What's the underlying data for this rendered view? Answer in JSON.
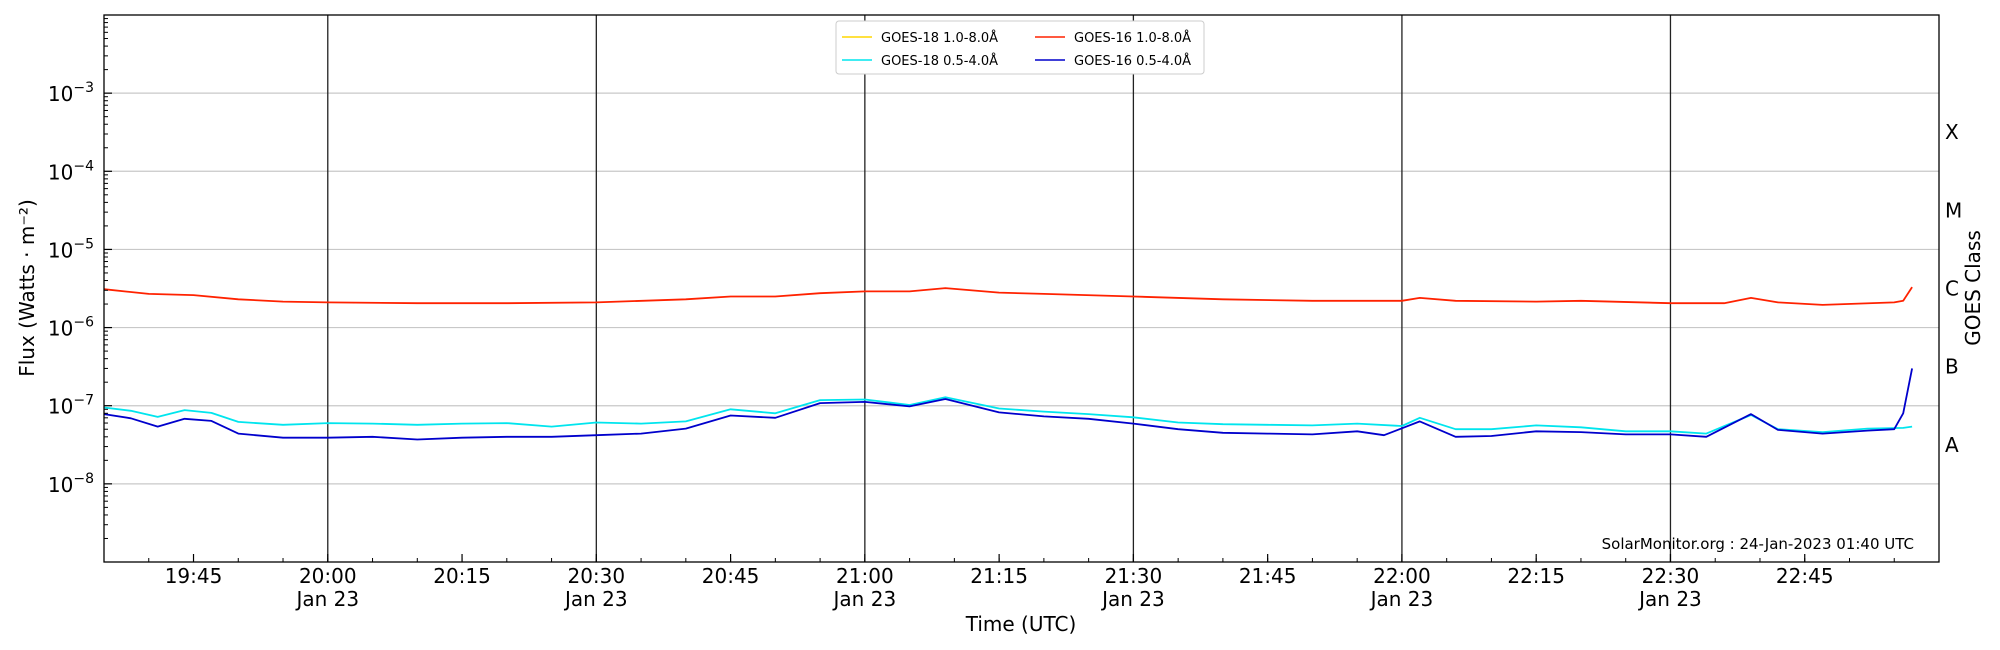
{
  "chart_data": {
    "type": "line",
    "xlabel": "Time (UTC)",
    "ylabel": "Flux (Watts · m⁻²)",
    "right_label": "GOES Class",
    "y_scale": "log",
    "ylim": [
      1e-09,
      0.01
    ],
    "xlim": [
      "2023-01-23 19:35",
      "2023-01-23 23:00"
    ],
    "x_ticks": [
      {
        "time": "2023-01-23 19:45",
        "label": "19:45",
        "sublabel": ""
      },
      {
        "time": "2023-01-23 20:00",
        "label": "20:00",
        "sublabel": "Jan 23"
      },
      {
        "time": "2023-01-23 20:15",
        "label": "20:15",
        "sublabel": ""
      },
      {
        "time": "2023-01-23 20:30",
        "label": "20:30",
        "sublabel": "Jan 23"
      },
      {
        "time": "2023-01-23 20:45",
        "label": "20:45",
        "sublabel": ""
      },
      {
        "time": "2023-01-23 21:00",
        "label": "21:00",
        "sublabel": "Jan 23"
      },
      {
        "time": "2023-01-23 21:15",
        "label": "21:15",
        "sublabel": ""
      },
      {
        "time": "2023-01-23 21:30",
        "label": "21:30",
        "sublabel": "Jan 23"
      },
      {
        "time": "2023-01-23 21:45",
        "label": "21:45",
        "sublabel": ""
      },
      {
        "time": "2023-01-23 22:00",
        "label": "22:00",
        "sublabel": "Jan 23"
      },
      {
        "time": "2023-01-23 22:15",
        "label": "22:15",
        "sublabel": ""
      },
      {
        "time": "2023-01-23 22:30",
        "label": "22:30",
        "sublabel": "Jan 23"
      },
      {
        "time": "2023-01-23 22:45",
        "label": "22:45",
        "sublabel": ""
      }
    ],
    "vertical_lines": [
      "2023-01-23 20:00",
      "2023-01-23 20:30",
      "2023-01-23 21:00",
      "2023-01-23 21:30",
      "2023-01-23 22:00",
      "2023-01-23 22:30"
    ],
    "y_ticks": [
      {
        "value": 0.001,
        "base": "10",
        "exp": "−3"
      },
      {
        "value": 0.0001,
        "base": "10",
        "exp": "−4"
      },
      {
        "value": 1e-05,
        "base": "10",
        "exp": "−5"
      },
      {
        "value": 1e-06,
        "base": "10",
        "exp": "−6"
      },
      {
        "value": 1e-07,
        "base": "10",
        "exp": "−7"
      },
      {
        "value": 1e-08,
        "base": "10",
        "exp": "−8"
      }
    ],
    "goes_classes": [
      {
        "label": "X",
        "value": 0.000316
      },
      {
        "label": "M",
        "value": 3.16e-05
      },
      {
        "label": "C",
        "value": 3.16e-06
      },
      {
        "label": "B",
        "value": 3.16e-07
      },
      {
        "label": "A",
        "value": 3.16e-08
      }
    ],
    "grid": "horizontal at decades",
    "legend_position": "top-center",
    "annotation": "SolarMonitor.org : 24-Jan-2023 01:40 UTC",
    "series": [
      {
        "name": "GOES-18 1.0-8.0Å",
        "color": "#ffd700",
        "values": []
      },
      {
        "name": "GOES-18 0.5-4.0Å",
        "color": "#00e5ee",
        "values": [
          [
            "2023-01-23 19:35",
            9.5e-08
          ],
          [
            "2023-01-23 19:38",
            8.6e-08
          ],
          [
            "2023-01-23 19:41",
            7.2e-08
          ],
          [
            "2023-01-23 19:44",
            8.8e-08
          ],
          [
            "2023-01-23 19:47",
            8.1e-08
          ],
          [
            "2023-01-23 19:50",
            6.2e-08
          ],
          [
            "2023-01-23 19:55",
            5.7e-08
          ],
          [
            "2023-01-23 20:00",
            6e-08
          ],
          [
            "2023-01-23 20:05",
            5.9e-08
          ],
          [
            "2023-01-23 20:10",
            5.7e-08
          ],
          [
            "2023-01-23 20:15",
            5.9e-08
          ],
          [
            "2023-01-23 20:20",
            6e-08
          ],
          [
            "2023-01-23 20:25",
            5.4e-08
          ],
          [
            "2023-01-23 20:30",
            6.1e-08
          ],
          [
            "2023-01-23 20:35",
            5.9e-08
          ],
          [
            "2023-01-23 20:40",
            6.3e-08
          ],
          [
            "2023-01-23 20:45",
            9e-08
          ],
          [
            "2023-01-23 20:50",
            8e-08
          ],
          [
            "2023-01-23 20:55",
            1.18e-07
          ],
          [
            "2023-01-23 21:00",
            1.2e-07
          ],
          [
            "2023-01-23 21:05",
            1.02e-07
          ],
          [
            "2023-01-23 21:09",
            1.28e-07
          ],
          [
            "2023-01-23 21:15",
            9.2e-08
          ],
          [
            "2023-01-23 21:20",
            8.4e-08
          ],
          [
            "2023-01-23 21:25",
            7.8e-08
          ],
          [
            "2023-01-23 21:30",
            7.1e-08
          ],
          [
            "2023-01-23 21:35",
            6.1e-08
          ],
          [
            "2023-01-23 21:40",
            5.8e-08
          ],
          [
            "2023-01-23 21:45",
            5.7e-08
          ],
          [
            "2023-01-23 21:50",
            5.6e-08
          ],
          [
            "2023-01-23 21:55",
            5.9e-08
          ],
          [
            "2023-01-23 22:00",
            5.5e-08
          ],
          [
            "2023-01-23 22:02",
            7e-08
          ],
          [
            "2023-01-23 22:06",
            5e-08
          ],
          [
            "2023-01-23 22:10",
            5e-08
          ],
          [
            "2023-01-23 22:15",
            5.6e-08
          ],
          [
            "2023-01-23 22:20",
            5.3e-08
          ],
          [
            "2023-01-23 22:25",
            4.7e-08
          ],
          [
            "2023-01-23 22:30",
            4.7e-08
          ],
          [
            "2023-01-23 22:34",
            4.4e-08
          ],
          [
            "2023-01-23 22:39",
            7.6e-08
          ],
          [
            "2023-01-23 22:42",
            5e-08
          ],
          [
            "2023-01-23 22:47",
            4.6e-08
          ],
          [
            "2023-01-23 22:52",
            5.1e-08
          ],
          [
            "2023-01-23 22:56",
            5.2e-08
          ],
          [
            "2023-01-23 22:57",
            5.4e-08
          ]
        ]
      },
      {
        "name": "GOES-16 1.0-8.0Å",
        "color": "#ff2200",
        "values": [
          [
            "2023-01-23 19:35",
            3.1e-06
          ],
          [
            "2023-01-23 19:40",
            2.7e-06
          ],
          [
            "2023-01-23 19:45",
            2.6e-06
          ],
          [
            "2023-01-23 19:50",
            2.3e-06
          ],
          [
            "2023-01-23 19:55",
            2.15e-06
          ],
          [
            "2023-01-23 20:00",
            2.1e-06
          ],
          [
            "2023-01-23 20:10",
            2.05e-06
          ],
          [
            "2023-01-23 20:20",
            2.05e-06
          ],
          [
            "2023-01-23 20:30",
            2.1e-06
          ],
          [
            "2023-01-23 20:40",
            2.3e-06
          ],
          [
            "2023-01-23 20:45",
            2.5e-06
          ],
          [
            "2023-01-23 20:50",
            2.5e-06
          ],
          [
            "2023-01-23 20:55",
            2.75e-06
          ],
          [
            "2023-01-23 21:00",
            2.9e-06
          ],
          [
            "2023-01-23 21:05",
            2.9e-06
          ],
          [
            "2023-01-23 21:09",
            3.2e-06
          ],
          [
            "2023-01-23 21:15",
            2.8e-06
          ],
          [
            "2023-01-23 21:20",
            2.7e-06
          ],
          [
            "2023-01-23 21:30",
            2.5e-06
          ],
          [
            "2023-01-23 21:40",
            2.3e-06
          ],
          [
            "2023-01-23 21:50",
            2.2e-06
          ],
          [
            "2023-01-23 22:00",
            2.2e-06
          ],
          [
            "2023-01-23 22:02",
            2.4e-06
          ],
          [
            "2023-01-23 22:06",
            2.2e-06
          ],
          [
            "2023-01-23 22:15",
            2.15e-06
          ],
          [
            "2023-01-23 22:20",
            2.2e-06
          ],
          [
            "2023-01-23 22:30",
            2.05e-06
          ],
          [
            "2023-01-23 22:36",
            2.05e-06
          ],
          [
            "2023-01-23 22:39",
            2.4e-06
          ],
          [
            "2023-01-23 22:42",
            2.1e-06
          ],
          [
            "2023-01-23 22:47",
            1.95e-06
          ],
          [
            "2023-01-23 22:55",
            2.1e-06
          ],
          [
            "2023-01-23 22:56",
            2.2e-06
          ],
          [
            "2023-01-23 22:57",
            3.3e-06
          ]
        ]
      },
      {
        "name": "GOES-16 0.5-4.0Å",
        "color": "#0000cc",
        "values": [
          [
            "2023-01-23 19:35",
            7.8e-08
          ],
          [
            "2023-01-23 19:38",
            6.9e-08
          ],
          [
            "2023-01-23 19:41",
            5.4e-08
          ],
          [
            "2023-01-23 19:44",
            6.8e-08
          ],
          [
            "2023-01-23 19:47",
            6.4e-08
          ],
          [
            "2023-01-23 19:50",
            4.4e-08
          ],
          [
            "2023-01-23 19:55",
            3.9e-08
          ],
          [
            "2023-01-23 20:00",
            3.9e-08
          ],
          [
            "2023-01-23 20:05",
            4e-08
          ],
          [
            "2023-01-23 20:10",
            3.7e-08
          ],
          [
            "2023-01-23 20:15",
            3.9e-08
          ],
          [
            "2023-01-23 20:20",
            4e-08
          ],
          [
            "2023-01-23 20:25",
            4e-08
          ],
          [
            "2023-01-23 20:30",
            4.2e-08
          ],
          [
            "2023-01-23 20:35",
            4.4e-08
          ],
          [
            "2023-01-23 20:40",
            5.1e-08
          ],
          [
            "2023-01-23 20:45",
            7.5e-08
          ],
          [
            "2023-01-23 20:50",
            7e-08
          ],
          [
            "2023-01-23 20:55",
            1.08e-07
          ],
          [
            "2023-01-23 21:00",
            1.12e-07
          ],
          [
            "2023-01-23 21:05",
            9.8e-08
          ],
          [
            "2023-01-23 21:09",
            1.22e-07
          ],
          [
            "2023-01-23 21:15",
            8.2e-08
          ],
          [
            "2023-01-23 21:20",
            7.3e-08
          ],
          [
            "2023-01-23 21:25",
            6.8e-08
          ],
          [
            "2023-01-23 21:30",
            5.9e-08
          ],
          [
            "2023-01-23 21:35",
            5e-08
          ],
          [
            "2023-01-23 21:40",
            4.5e-08
          ],
          [
            "2023-01-23 21:45",
            4.4e-08
          ],
          [
            "2023-01-23 21:50",
            4.3e-08
          ],
          [
            "2023-01-23 21:55",
            4.7e-08
          ],
          [
            "2023-01-23 21:58",
            4.2e-08
          ],
          [
            "2023-01-23 22:02",
            6.3e-08
          ],
          [
            "2023-01-23 22:06",
            4e-08
          ],
          [
            "2023-01-23 22:10",
            4.1e-08
          ],
          [
            "2023-01-23 22:15",
            4.7e-08
          ],
          [
            "2023-01-23 22:20",
            4.6e-08
          ],
          [
            "2023-01-23 22:25",
            4.3e-08
          ],
          [
            "2023-01-23 22:30",
            4.3e-08
          ],
          [
            "2023-01-23 22:34",
            4e-08
          ],
          [
            "2023-01-23 22:39",
            7.8e-08
          ],
          [
            "2023-01-23 22:42",
            4.9e-08
          ],
          [
            "2023-01-23 22:47",
            4.4e-08
          ],
          [
            "2023-01-23 22:52",
            4.8e-08
          ],
          [
            "2023-01-23 22:55",
            5e-08
          ],
          [
            "2023-01-23 22:56",
            8e-08
          ],
          [
            "2023-01-23 22:57",
            3e-07
          ]
        ]
      }
    ]
  }
}
